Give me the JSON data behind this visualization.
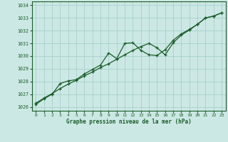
{
  "title": "Graphe pression niveau de la mer (hPa)",
  "bg_color": "#cce8e4",
  "grid_color": "#aad4cf",
  "line_color": "#1a5c2a",
  "xlim": [
    -0.5,
    23.5
  ],
  "ylim": [
    1025.7,
    1034.3
  ],
  "xticks": [
    0,
    1,
    2,
    3,
    4,
    5,
    6,
    7,
    8,
    9,
    10,
    11,
    12,
    13,
    14,
    15,
    16,
    17,
    18,
    19,
    20,
    21,
    22,
    23
  ],
  "yticks": [
    1026,
    1027,
    1028,
    1029,
    1030,
    1031,
    1032,
    1033,
    1034
  ],
  "line1_x": [
    0,
    1,
    2,
    3,
    4,
    5,
    6,
    7,
    8,
    9,
    10,
    11,
    12,
    13,
    14,
    15,
    16,
    17,
    18,
    19,
    20,
    21,
    22,
    23
  ],
  "line1_y": [
    1026.3,
    1026.7,
    1027.05,
    1027.45,
    1027.8,
    1028.1,
    1028.45,
    1028.75,
    1029.1,
    1029.4,
    1029.75,
    1030.1,
    1030.45,
    1030.75,
    1031.0,
    1030.65,
    1030.1,
    1031.05,
    1031.65,
    1032.05,
    1032.5,
    1033.0,
    1033.15,
    1033.4
  ],
  "line2_x": [
    0,
    1,
    2,
    3,
    4,
    5,
    6,
    7,
    8,
    9,
    10,
    11,
    12,
    13,
    14,
    15,
    16,
    17,
    18,
    19,
    20,
    21,
    22,
    23
  ],
  "line2_y": [
    1026.2,
    1026.65,
    1027.0,
    1027.85,
    1028.05,
    1028.15,
    1028.6,
    1028.95,
    1029.3,
    1030.25,
    1029.8,
    1031.0,
    1031.05,
    1030.45,
    1030.1,
    1030.05,
    1030.5,
    1031.25,
    1031.75,
    1032.1,
    1032.5,
    1033.0,
    1033.15,
    1033.4
  ]
}
